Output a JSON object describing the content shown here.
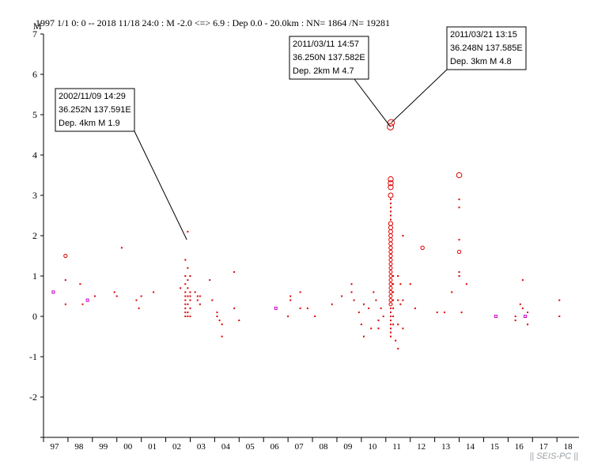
{
  "header": {
    "ylabel": "M",
    "title": "1997 1/1 0: 0 -- 2018 11/18 24:0  : M -2.0 <=> 6.9   :  Dep 0.0 - 20.0km :  NN= 1864 /N= 19281"
  },
  "watermark": "|| SEIS-PC ||",
  "colors": {
    "event": "#dd0000",
    "event_small": "#dd0000",
    "special": "#cc00cc",
    "axis": "#000000"
  },
  "chart_data": {
    "type": "scatter",
    "title": "1997 1/1 0: 0 -- 2018 11/18 24:0  : M -2.0 <=> 6.9   :  Dep 0.0 - 20.0km :  NN= 1864 /N= 19281",
    "ylabel": "M",
    "xlabel": "",
    "ylim": [
      -3,
      7
    ],
    "yticks": [
      -2,
      -1,
      0,
      1,
      2,
      3,
      4,
      5,
      6,
      7
    ],
    "xlim": [
      1997,
      2018.9
    ],
    "xticks": [
      {
        "label": "97",
        "year": 1997
      },
      {
        "label": "98",
        "year": 1998
      },
      {
        "label": "99",
        "year": 1999
      },
      {
        "label": "00",
        "year": 2000
      },
      {
        "label": "01",
        "year": 2001
      },
      {
        "label": "02",
        "year": 2002
      },
      {
        "label": "03",
        "year": 2003
      },
      {
        "label": "04",
        "year": 2004
      },
      {
        "label": "05",
        "year": 2005
      },
      {
        "label": "06",
        "year": 2006
      },
      {
        "label": "07",
        "year": 2007
      },
      {
        "label": "08",
        "year": 2008
      },
      {
        "label": "09",
        "year": 2009
      },
      {
        "label": "10",
        "year": 2010
      },
      {
        "label": "11",
        "year": 2011
      },
      {
        "label": "12",
        "year": 2012
      },
      {
        "label": "13",
        "year": 2013
      },
      {
        "label": "14",
        "year": 2014
      },
      {
        "label": "15",
        "year": 2015
      },
      {
        "label": "16",
        "year": 2016
      },
      {
        "label": "17",
        "year": 2017
      },
      {
        "label": "18",
        "year": 2018
      }
    ],
    "annotations": [
      {
        "date": "2002/11/09 14:29",
        "coords": "36.252N  137.591E",
        "depmag": "Dep. 4km    M 1.9",
        "event": [
          2002.86,
          1.9
        ],
        "box_anchor": "box1"
      },
      {
        "date": "2011/03/11 14:57",
        "coords": "36.250N  137.582E",
        "depmag": "Dep. 2km    M 4.7",
        "event": [
          2011.19,
          4.7
        ],
        "box_anchor": "box2"
      },
      {
        "date": "2011/03/21 13:15",
        "coords": "36.248N  137.585E",
        "depmag": "Dep. 3km    M 4.8",
        "event": [
          2011.22,
          4.8
        ],
        "box_anchor": "box3"
      }
    ],
    "points": [
      [
        1997.4,
        0.6,
        "s"
      ],
      [
        1997.9,
        1.5,
        "c"
      ],
      [
        1997.9,
        0.9,
        "d"
      ],
      [
        1997.9,
        0.3,
        "d"
      ],
      [
        1998.5,
        0.8,
        "d"
      ],
      [
        1998.6,
        0.3,
        "d"
      ],
      [
        1998.8,
        0.4,
        "s"
      ],
      [
        1999.1,
        0.5,
        "d"
      ],
      [
        1999.9,
        0.6,
        "d"
      ],
      [
        2000.0,
        0.5,
        "d"
      ],
      [
        2000.2,
        1.7,
        "d"
      ],
      [
        2000.8,
        0.4,
        "d"
      ],
      [
        2000.9,
        0.2,
        "d"
      ],
      [
        2001.0,
        0.5,
        "d"
      ],
      [
        2001.5,
        0.6,
        "d"
      ],
      [
        2002.6,
        0.7,
        "d"
      ],
      [
        2002.8,
        1.4,
        "d"
      ],
      [
        2002.8,
        1.0,
        "d"
      ],
      [
        2002.8,
        0.8,
        "d"
      ],
      [
        2002.8,
        0.6,
        "d"
      ],
      [
        2002.8,
        0.5,
        "d"
      ],
      [
        2002.8,
        0.4,
        "d"
      ],
      [
        2002.8,
        0.3,
        "d"
      ],
      [
        2002.8,
        0.2,
        "d"
      ],
      [
        2002.8,
        0.1,
        "d"
      ],
      [
        2002.8,
        0.0,
        "d"
      ],
      [
        2002.9,
        2.1,
        "d"
      ],
      [
        2002.9,
        1.2,
        "d"
      ],
      [
        2002.9,
        0.9,
        "d"
      ],
      [
        2002.9,
        0.7,
        "d"
      ],
      [
        2002.9,
        0.5,
        "d"
      ],
      [
        2002.9,
        0.3,
        "d"
      ],
      [
        2002.9,
        0.1,
        "d"
      ],
      [
        2002.9,
        0.0,
        "d"
      ],
      [
        2003.0,
        1.0,
        "d"
      ],
      [
        2003.0,
        0.6,
        "d"
      ],
      [
        2003.0,
        0.5,
        "d"
      ],
      [
        2003.0,
        0.4,
        "d"
      ],
      [
        2003.0,
        0.2,
        "d"
      ],
      [
        2003.0,
        0.0,
        "d"
      ],
      [
        2003.2,
        0.6,
        "d"
      ],
      [
        2003.3,
        0.5,
        "d"
      ],
      [
        2003.3,
        0.4,
        "d"
      ],
      [
        2003.4,
        0.5,
        "d"
      ],
      [
        2003.4,
        0.3,
        "d"
      ],
      [
        2003.8,
        0.9,
        "d"
      ],
      [
        2003.9,
        0.4,
        "d"
      ],
      [
        2004.1,
        0.1,
        "d"
      ],
      [
        2004.1,
        0.0,
        "d"
      ],
      [
        2004.2,
        -0.1,
        "d"
      ],
      [
        2004.3,
        -0.2,
        "d"
      ],
      [
        2004.3,
        -0.5,
        "d"
      ],
      [
        2004.8,
        1.1,
        "d"
      ],
      [
        2004.8,
        0.2,
        "d"
      ],
      [
        2005.0,
        -0.1,
        "d"
      ],
      [
        2006.5,
        0.2,
        "s"
      ],
      [
        2007.0,
        0.0,
        "d"
      ],
      [
        2007.1,
        0.5,
        "d"
      ],
      [
        2007.1,
        0.4,
        "d"
      ],
      [
        2007.5,
        0.6,
        "d"
      ],
      [
        2007.5,
        0.2,
        "d"
      ],
      [
        2007.8,
        0.2,
        "d"
      ],
      [
        2008.1,
        0.0,
        "d"
      ],
      [
        2008.8,
        0.3,
        "d"
      ],
      [
        2009.2,
        0.5,
        "d"
      ],
      [
        2009.6,
        0.8,
        "d"
      ],
      [
        2009.6,
        0.6,
        "d"
      ],
      [
        2009.7,
        0.4,
        "d"
      ],
      [
        2009.9,
        0.1,
        "d"
      ],
      [
        2010.0,
        -0.2,
        "d"
      ],
      [
        2010.1,
        0.3,
        "d"
      ],
      [
        2010.1,
        -0.5,
        "d"
      ],
      [
        2010.3,
        0.2,
        "d"
      ],
      [
        2010.4,
        -0.3,
        "d"
      ],
      [
        2010.5,
        0.6,
        "d"
      ],
      [
        2010.6,
        0.4,
        "d"
      ],
      [
        2010.7,
        -0.1,
        "d"
      ],
      [
        2010.7,
        -0.3,
        "d"
      ],
      [
        2010.8,
        0.2,
        "d"
      ],
      [
        2010.9,
        0.0,
        "d"
      ],
      [
        2011.19,
        4.7,
        "c"
      ],
      [
        2011.22,
        4.8,
        "c"
      ],
      [
        2011.2,
        3.4,
        "c"
      ],
      [
        2011.2,
        3.3,
        "c"
      ],
      [
        2011.2,
        3.2,
        "c"
      ],
      [
        2011.2,
        3.0,
        "c"
      ],
      [
        2011.2,
        2.9,
        "d"
      ],
      [
        2011.2,
        2.8,
        "d"
      ],
      [
        2011.2,
        2.7,
        "d"
      ],
      [
        2011.2,
        2.6,
        "d"
      ],
      [
        2011.2,
        2.5,
        "d"
      ],
      [
        2011.2,
        2.4,
        "d"
      ],
      [
        2011.2,
        2.3,
        "c"
      ],
      [
        2011.2,
        2.2,
        "c"
      ],
      [
        2011.2,
        2.1,
        "c"
      ],
      [
        2011.2,
        2.0,
        "c"
      ],
      [
        2011.2,
        1.9,
        "c"
      ],
      [
        2011.2,
        1.8,
        "c"
      ],
      [
        2011.2,
        1.7,
        "c"
      ],
      [
        2011.2,
        1.6,
        "c"
      ],
      [
        2011.2,
        1.5,
        "c"
      ],
      [
        2011.2,
        1.4,
        "c"
      ],
      [
        2011.2,
        1.3,
        "c"
      ],
      [
        2011.2,
        1.2,
        "c"
      ],
      [
        2011.2,
        1.1,
        "c"
      ],
      [
        2011.2,
        1.0,
        "c"
      ],
      [
        2011.2,
        0.9,
        "c"
      ],
      [
        2011.2,
        0.8,
        "c"
      ],
      [
        2011.2,
        0.7,
        "c"
      ],
      [
        2011.2,
        0.6,
        "c"
      ],
      [
        2011.2,
        0.5,
        "c"
      ],
      [
        2011.2,
        0.4,
        "c"
      ],
      [
        2011.2,
        0.3,
        "c"
      ],
      [
        2011.2,
        0.2,
        "d"
      ],
      [
        2011.2,
        0.1,
        "d"
      ],
      [
        2011.2,
        0.0,
        "d"
      ],
      [
        2011.2,
        -0.1,
        "d"
      ],
      [
        2011.2,
        -0.2,
        "d"
      ],
      [
        2011.2,
        -0.3,
        "d"
      ],
      [
        2011.2,
        -0.4,
        "d"
      ],
      [
        2011.2,
        -0.5,
        "d"
      ],
      [
        2011.3,
        1.0,
        "d"
      ],
      [
        2011.3,
        0.8,
        "d"
      ],
      [
        2011.3,
        0.6,
        "d"
      ],
      [
        2011.3,
        0.4,
        "d"
      ],
      [
        2011.3,
        0.2,
        "d"
      ],
      [
        2011.3,
        0.0,
        "d"
      ],
      [
        2011.3,
        -0.2,
        "d"
      ],
      [
        2011.4,
        -0.6,
        "d"
      ],
      [
        2011.5,
        1.0,
        "d"
      ],
      [
        2011.5,
        0.4,
        "d"
      ],
      [
        2011.5,
        -0.2,
        "d"
      ],
      [
        2011.5,
        -0.8,
        "d"
      ],
      [
        2011.6,
        0.8,
        "d"
      ],
      [
        2011.6,
        0.3,
        "d"
      ],
      [
        2011.7,
        2.0,
        "d"
      ],
      [
        2011.7,
        0.4,
        "d"
      ],
      [
        2011.7,
        -0.3,
        "d"
      ],
      [
        2012.0,
        0.8,
        "d"
      ],
      [
        2012.2,
        0.2,
        "d"
      ],
      [
        2012.5,
        1.7,
        "c"
      ],
      [
        2013.1,
        0.1,
        "d"
      ],
      [
        2013.4,
        0.1,
        "d"
      ],
      [
        2013.7,
        0.6,
        "d"
      ],
      [
        2014.0,
        3.5,
        "c"
      ],
      [
        2014.0,
        2.9,
        "d"
      ],
      [
        2014.0,
        2.7,
        "d"
      ],
      [
        2014.0,
        1.9,
        "d"
      ],
      [
        2014.0,
        1.6,
        "c"
      ],
      [
        2014.0,
        1.1,
        "d"
      ],
      [
        2014.0,
        1.0,
        "d"
      ],
      [
        2014.1,
        0.1,
        "d"
      ],
      [
        2014.3,
        0.8,
        "d"
      ],
      [
        2015.5,
        0.0,
        "s"
      ],
      [
        2016.3,
        0.0,
        "d"
      ],
      [
        2016.3,
        -0.1,
        "d"
      ],
      [
        2016.5,
        0.3,
        "d"
      ],
      [
        2016.6,
        0.9,
        "d"
      ],
      [
        2016.6,
        0.2,
        "d"
      ],
      [
        2016.7,
        0.0,
        "s"
      ],
      [
        2016.8,
        0.1,
        "d"
      ],
      [
        2016.8,
        -0.2,
        "d"
      ],
      [
        2018.1,
        0.4,
        "d"
      ],
      [
        2018.1,
        0.0,
        "d"
      ]
    ]
  }
}
